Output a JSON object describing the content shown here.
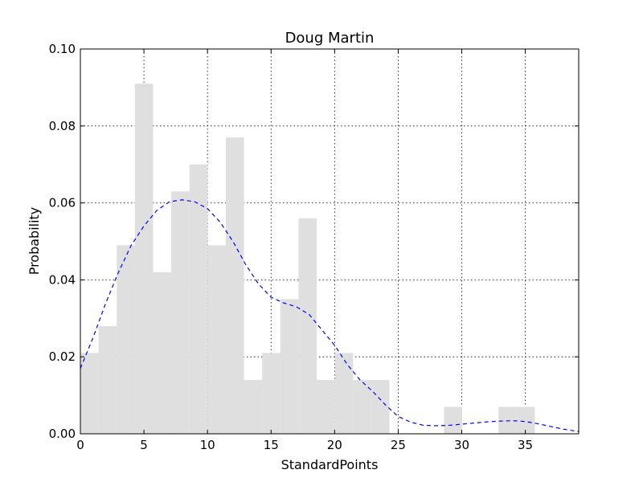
{
  "chart_data": {
    "type": "bar",
    "title": "Doug Martin",
    "xlabel": "StandardPoints",
    "ylabel": "Probability",
    "xlim": [
      0,
      39.2
    ],
    "ylim": [
      0,
      0.1
    ],
    "xticks": [
      0,
      5,
      10,
      15,
      20,
      25,
      30,
      35
    ],
    "xtick_labels": [
      "0",
      "5",
      "10",
      "15",
      "20",
      "25",
      "30",
      "35"
    ],
    "yticks": [
      0,
      0.02,
      0.04,
      0.06,
      0.08,
      0.1
    ],
    "ytick_labels": [
      "0.00",
      "0.02",
      "0.04",
      "0.06",
      "0.08",
      "0.10"
    ],
    "grid": true,
    "bar_color": "#dfdfdf",
    "curve_color": "#0000ff",
    "histogram": {
      "bin_edges": [
        0,
        1.43,
        2.86,
        4.29,
        5.72,
        7.15,
        8.58,
        10.01,
        11.44,
        12.87,
        14.3,
        15.73,
        17.16,
        18.59,
        20.02,
        21.45,
        22.88,
        24.31,
        25.74,
        27.17,
        28.6,
        30.03,
        31.46,
        32.89,
        34.32,
        35.75
      ],
      "values": [
        0.021,
        0.028,
        0.049,
        0.091,
        0.042,
        0.063,
        0.07,
        0.049,
        0.077,
        0.014,
        0.021,
        0.035,
        0.056,
        0.014,
        0.021,
        0.014,
        0.014,
        0.0,
        0.0,
        0.0,
        0.007,
        0.0,
        0.0,
        0.007,
        0.007
      ]
    },
    "series": [
      {
        "type": "line",
        "style": "dashed",
        "x": [
          0,
          1,
          2,
          3,
          4,
          5,
          6,
          7,
          8,
          9,
          10,
          11,
          12,
          13,
          14,
          15,
          16,
          17,
          18,
          19,
          20,
          21,
          22,
          23,
          24,
          25,
          26,
          27,
          28,
          29,
          30,
          31,
          32,
          33,
          34,
          35,
          36,
          37,
          38,
          39.2
        ],
        "y": [
          0.017,
          0.025,
          0.034,
          0.042,
          0.049,
          0.054,
          0.058,
          0.0603,
          0.0608,
          0.0603,
          0.0585,
          0.055,
          0.05,
          0.044,
          0.039,
          0.0355,
          0.034,
          0.033,
          0.031,
          0.027,
          0.023,
          0.018,
          0.014,
          0.011,
          0.0075,
          0.0045,
          0.003,
          0.0022,
          0.0021,
          0.0022,
          0.0025,
          0.0028,
          0.0031,
          0.0033,
          0.0034,
          0.0032,
          0.0026,
          0.0019,
          0.0012,
          0.0006
        ]
      }
    ]
  }
}
